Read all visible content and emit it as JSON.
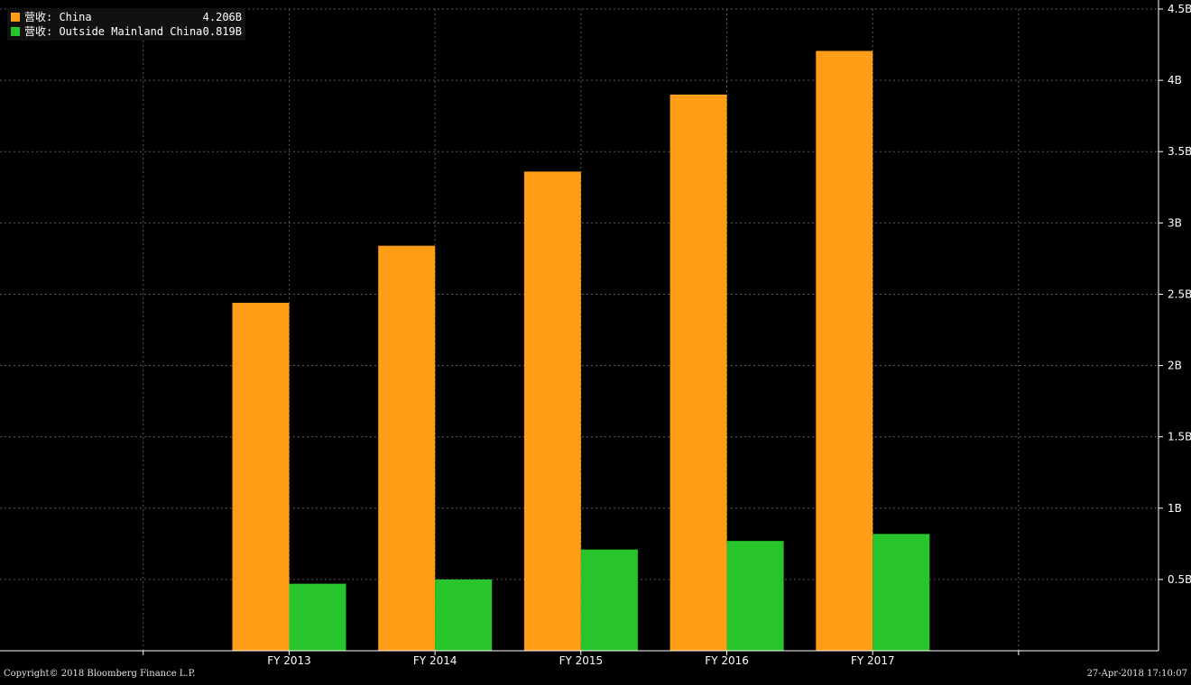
{
  "legend": {
    "items": [
      {
        "label": "营收: China",
        "value": "4.206B",
        "color": "#ff9e16"
      },
      {
        "label": "营收: Outside Mainland China",
        "value": "0.819B",
        "color": "#27c52b"
      }
    ]
  },
  "footer": {
    "copyright": "Copyright© 2018 Bloomberg Finance L.P.",
    "timestamp": "27-Apr-2018 17:10:07"
  },
  "chart_data": {
    "type": "bar",
    "categories": [
      "FY 2013",
      "FY 2014",
      "FY 2015",
      "FY 2016",
      "FY 2017"
    ],
    "series": [
      {
        "name": "营收: China",
        "color": "#ff9e16",
        "values": [
          2.44,
          2.84,
          3.36,
          3.9,
          4.206
        ]
      },
      {
        "name": "营收: Outside Mainland China",
        "color": "#27c52b",
        "values": [
          0.47,
          0.5,
          0.71,
          0.77,
          0.819
        ]
      }
    ],
    "ylim": [
      0,
      4.5
    ],
    "yticks": [
      {
        "value": 0.5,
        "label": "0.5B"
      },
      {
        "value": 1,
        "label": "1B"
      },
      {
        "value": 1.5,
        "label": "1.5B"
      },
      {
        "value": 2,
        "label": "2B"
      },
      {
        "value": 2.5,
        "label": "2.5B"
      },
      {
        "value": 3,
        "label": "3B"
      },
      {
        "value": 3.5,
        "label": "3.5B"
      },
      {
        "value": 4,
        "label": "4B"
      },
      {
        "value": 4.5,
        "label": "4.5B"
      }
    ],
    "grid": true,
    "legend_position": "top-left",
    "title": "",
    "xlabel": "",
    "ylabel": ""
  }
}
